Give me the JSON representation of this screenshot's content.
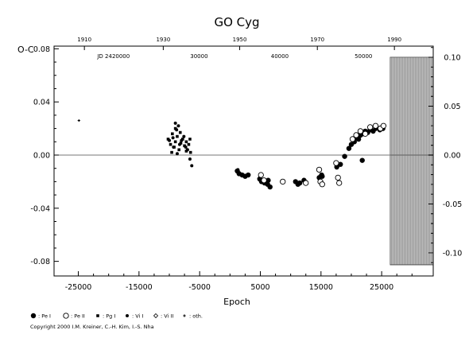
{
  "chart_data": {
    "type": "scatter",
    "title": "GO Cyg",
    "ylabel": "O-C",
    "xlabel": "Epoch",
    "xlim": [
      -29000,
      33500
    ],
    "ylim": [
      -0.091,
      0.082
    ],
    "x_ticks": [
      "-25000",
      "-15000",
      "-5000",
      "5000",
      "15000",
      "25000"
    ],
    "y_ticks_left": [
      "0.08",
      "0.04",
      "0.00",
      "-0.04",
      "-0.08"
    ],
    "y_ticks_right": [
      "0.10",
      "0.05",
      "0.00",
      "-0.05",
      "-0.10"
    ],
    "top_year_ticks": [
      "1910",
      "1930",
      "1950",
      "1970",
      "1990"
    ],
    "top_jd_ticks": [
      "JD 2420000",
      "30000",
      "40000",
      "50000"
    ],
    "zero_line": 0.0,
    "hatched_region": {
      "x_from": 26400,
      "x_to": 33500
    },
    "series": [
      {
        "name": ": Pe I",
        "marker": "filled-circle",
        "points": [
          [
            1200,
            -0.012
          ],
          [
            1500,
            -0.014
          ],
          [
            2000,
            -0.015
          ],
          [
            2500,
            -0.016
          ],
          [
            3000,
            -0.015
          ],
          [
            4900,
            -0.018
          ],
          [
            5200,
            -0.02
          ],
          [
            5700,
            -0.021
          ],
          [
            6200,
            -0.022
          ],
          [
            6600,
            -0.024
          ],
          [
            6300,
            -0.019
          ],
          [
            10800,
            -0.02
          ],
          [
            11200,
            -0.022
          ],
          [
            11500,
            -0.021
          ],
          [
            12200,
            -0.019
          ],
          [
            14700,
            -0.017
          ],
          [
            15100,
            -0.015
          ],
          [
            15200,
            -0.016
          ],
          [
            17600,
            -0.009
          ],
          [
            18200,
            -0.007
          ],
          [
            18900,
            -0.001
          ],
          [
            19600,
            0.005
          ],
          [
            20000,
            0.008
          ],
          [
            20500,
            0.01
          ],
          [
            20800,
            0.013
          ],
          [
            21200,
            0.012
          ],
          [
            21500,
            0.015
          ],
          [
            21900,
            0.016
          ],
          [
            22300,
            0.018
          ],
          [
            22700,
            0.017
          ],
          [
            23100,
            0.019
          ],
          [
            21800,
            -0.004
          ],
          [
            23600,
            0.018
          ],
          [
            24000,
            0.02
          ],
          [
            24700,
            0.019
          ],
          [
            25200,
            0.02
          ]
        ]
      },
      {
        "name": ": Pe II",
        "marker": "open-circle",
        "points": [
          [
            5100,
            -0.015
          ],
          [
            5600,
            -0.019
          ],
          [
            8700,
            -0.02
          ],
          [
            12500,
            -0.021
          ],
          [
            14700,
            -0.011
          ],
          [
            14900,
            -0.02
          ],
          [
            15200,
            -0.022
          ],
          [
            17500,
            -0.006
          ],
          [
            17800,
            -0.017
          ],
          [
            18000,
            -0.021
          ],
          [
            20200,
            0.012
          ],
          [
            20800,
            0.015
          ],
          [
            21500,
            0.018
          ],
          [
            22300,
            0.016
          ],
          [
            23100,
            0.021
          ],
          [
            24000,
            0.022
          ],
          [
            24800,
            0.02
          ],
          [
            25300,
            0.022
          ]
        ]
      },
      {
        "name": ": Pg I",
        "marker": "square",
        "points": [
          [
            -10200,
            0.012
          ],
          [
            -9800,
            0.008
          ],
          [
            -9500,
            0.016
          ],
          [
            -9200,
            0.006
          ],
          [
            -9000,
            0.01
          ],
          [
            -8700,
            0.014
          ],
          [
            -8400,
            0.004
          ],
          [
            -8100,
            0.009
          ],
          [
            -7800,
            0.012
          ],
          [
            -7500,
            0.007
          ],
          [
            -7200,
            0.003
          ],
          [
            -6800,
            0.008
          ],
          [
            -6500,
            0.002
          ],
          [
            -9000,
            0.02
          ],
          [
            -8200,
            0.017
          ],
          [
            -6600,
            0.012
          ],
          [
            -9600,
            0.002
          ],
          [
            -7200,
            0.01
          ]
        ]
      },
      {
        "name": ": Vi I",
        "marker": "dot",
        "points": [
          [
            -10000,
            0.011
          ],
          [
            -9400,
            0.013
          ],
          [
            -9000,
            0.024
          ],
          [
            -8800,
            0.019
          ],
          [
            -8500,
            0.022
          ],
          [
            -8300,
            0.008
          ],
          [
            -8000,
            0.011
          ],
          [
            -7600,
            0.014
          ],
          [
            -7300,
            0.006
          ],
          [
            -7000,
            0.004
          ],
          [
            -6600,
            -0.003
          ],
          [
            -6300,
            -0.008
          ],
          [
            -8700,
            0.001
          ],
          [
            -9300,
            0.006
          ],
          [
            1300,
            -0.011
          ]
        ]
      },
      {
        "name": ": Vi II",
        "marker": "open-diamond",
        "points": []
      },
      {
        "name": ": oth.",
        "marker": "star",
        "points": [
          [
            -24900,
            0.026
          ]
        ]
      }
    ]
  },
  "copyright": "Copyright 2000 I.M. Kreiner, C.-H. Kim, I.-S. Nha"
}
